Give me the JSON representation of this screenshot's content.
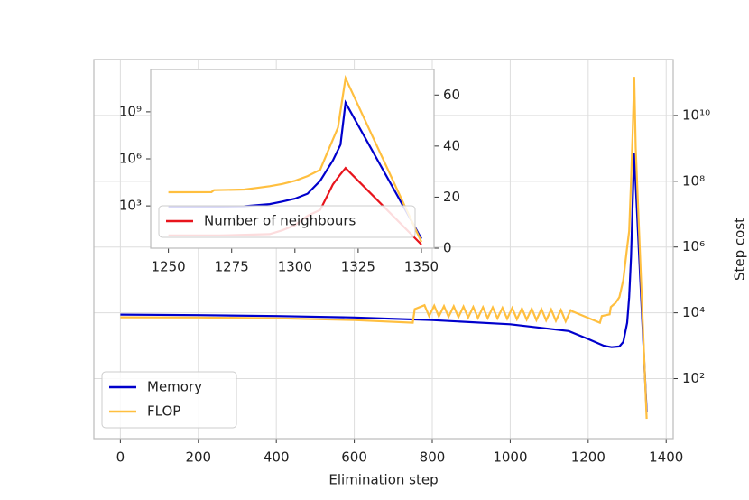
{
  "chart_data": [
    {
      "type": "line",
      "log_y": true,
      "grid": true,
      "y_axis_side": "right",
      "legend": "lower left",
      "xlabel": "Elimination step",
      "ylabel": "Step cost",
      "xlim": [
        -68,
        1418
      ],
      "xticks": [
        0,
        200,
        400,
        600,
        800,
        1000,
        1200,
        1400
      ],
      "ylim": [
        1.5,
        500000000000
      ],
      "yticks": [
        {
          "value": 100,
          "label": "10²"
        },
        {
          "value": 10000,
          "label": "10⁴"
        },
        {
          "value": 1000000,
          "label": "10⁶"
        },
        {
          "value": 100000000,
          "label": "10⁸"
        },
        {
          "value": 10000000000,
          "label": "10¹⁰"
        }
      ],
      "series": [
        {
          "name": "Memory",
          "color": "#0000cc",
          "x": [
            0,
            200,
            400,
            600,
            800,
            1000,
            1150,
            1200,
            1240,
            1260,
            1280,
            1290,
            1300,
            1305,
            1310,
            1315,
            1318,
            1350
          ],
          "values": [
            8800,
            8500,
            8000,
            7200,
            6000,
            4500,
            2800,
            1600,
            1000,
            900,
            950,
            1300,
            5000,
            30000,
            500000,
            50000000,
            700000000,
            10
          ]
        },
        {
          "name": "FLOP",
          "color": "#ffbf3f",
          "x": [
            0,
            200,
            400,
            600,
            750,
            755,
            780,
            792,
            805,
            817,
            830,
            842,
            855,
            867,
            880,
            892,
            905,
            917,
            930,
            942,
            955,
            967,
            980,
            992,
            1005,
            1017,
            1030,
            1042,
            1055,
            1067,
            1080,
            1092,
            1105,
            1117,
            1130,
            1142,
            1155,
            1160,
            1230,
            1235,
            1255,
            1258,
            1270,
            1280,
            1290,
            1300,
            1305,
            1310,
            1314,
            1318,
            1322,
            1350
          ],
          "values": [
            7300,
            7200,
            6800,
            6000,
            5000,
            13000,
            17000,
            8000,
            16500,
            7800,
            16000,
            7600,
            15800,
            7400,
            15500,
            7200,
            15000,
            7000,
            14800,
            6900,
            14500,
            6800,
            14200,
            6600,
            14000,
            6400,
            13600,
            6200,
            13300,
            6000,
            13000,
            5900,
            12600,
            5700,
            12200,
            5500,
            12000,
            11000,
            5000,
            8000,
            9000,
            15000,
            20000,
            30000,
            100000,
            1000000,
            3000000,
            100000000,
            3000000000,
            150000000000,
            1000000000,
            6
          ]
        }
      ]
    },
    {
      "type": "line",
      "log_y": true,
      "grid": false,
      "y_axis_side": "left",
      "legend": "lower left",
      "xlim": [
        1243,
        1355
      ],
      "xticks": [
        1250,
        1275,
        1300,
        1325,
        1350
      ],
      "ylim": [
        2,
        500000000000
      ],
      "yticks": [
        {
          "value": 1000,
          "label": "10³"
        },
        {
          "value": 1000000,
          "label": "10⁶"
        },
        {
          "value": 1000000000,
          "label": "10⁹"
        }
      ],
      "y2lim": [
        0,
        70
      ],
      "y2ticks": [
        0,
        20,
        40,
        60
      ],
      "series": [
        {
          "color": "#0000cc",
          "x": [
            1250,
            1260,
            1270,
            1280,
            1290,
            1295,
            1300,
            1305,
            1310,
            1315,
            1318,
            1320,
            1350
          ],
          "values": [
            870,
            880,
            900,
            950,
            1300,
            1900,
            2900,
            6000,
            40000,
            800000,
            8000000,
            3800000000,
            8
          ]
        },
        {
          "color": "#ffbf3f",
          "x": [
            1250,
            1267,
            1268,
            1280,
            1285,
            1290,
            1295,
            1300,
            1305,
            1310,
            1313,
            1317,
            1320,
            1350
          ],
          "values": [
            7400,
            7500,
            10000,
            11000,
            14000,
            18000,
            25000,
            40000,
            80000,
            200000,
            3000000,
            100000000,
            140000000000,
            5
          ]
        },
        {
          "name": "Number of neighbours",
          "color": "#e8141c",
          "axis": "y2",
          "x": [
            1250,
            1270,
            1290,
            1295,
            1300,
            1305,
            1310,
            1313,
            1315,
            1318,
            1320,
            1350
          ],
          "values": [
            5,
            5,
            5.5,
            7,
            9,
            12.7,
            15,
            21,
            25,
            29,
            31.4,
            1.4
          ]
        }
      ]
    }
  ]
}
